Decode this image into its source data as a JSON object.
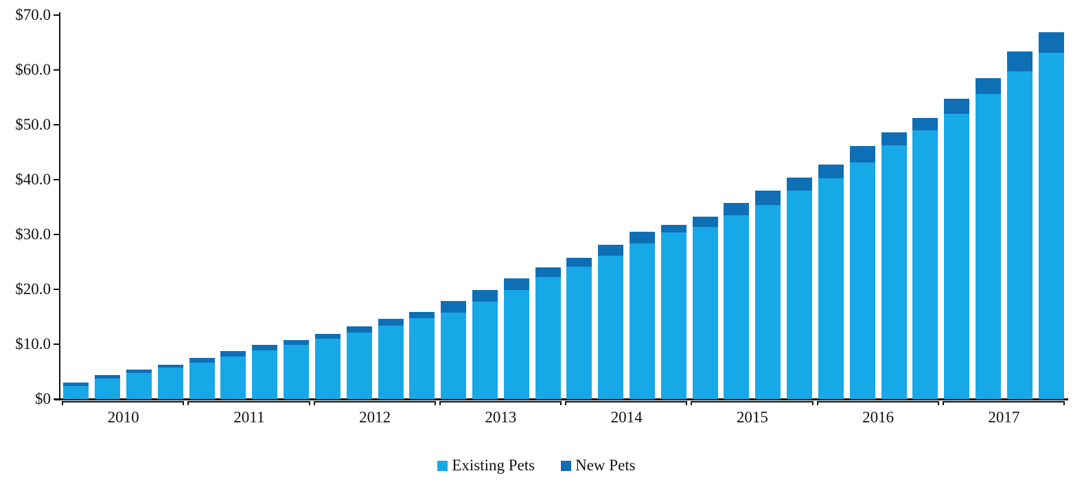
{
  "chart_data": {
    "type": "bar",
    "stacked": true,
    "orientation": "vertical",
    "title": "",
    "xlabel": "",
    "ylabel": "",
    "ylim": [
      0,
      70
    ],
    "grid": false,
    "legend_position": "bottom-center",
    "y_ticks": [
      {
        "label": "$70.0",
        "value": 70
      },
      {
        "label": "$60.0",
        "value": 60
      },
      {
        "label": "$50.0",
        "value": 50
      },
      {
        "label": "$40.0",
        "value": 40
      },
      {
        "label": "$30.0",
        "value": 30
      },
      {
        "label": "$20.0",
        "value": 20
      },
      {
        "label": "$10.0",
        "value": 10
      },
      {
        "label": "$0",
        "value": 0
      }
    ],
    "years": [
      "2010",
      "2011",
      "2012",
      "2013",
      "2014",
      "2015",
      "2016",
      "2017"
    ],
    "bars_per_year": 4,
    "categories": [
      "2010 Q1",
      "2010 Q2",
      "2010 Q3",
      "2010 Q4",
      "2011 Q1",
      "2011 Q2",
      "2011 Q3",
      "2011 Q4",
      "2012 Q1",
      "2012 Q2",
      "2012 Q3",
      "2012 Q4",
      "2013 Q1",
      "2013 Q2",
      "2013 Q3",
      "2013 Q4",
      "2014 Q1",
      "2014 Q2",
      "2014 Q3",
      "2014 Q4",
      "2015 Q1",
      "2015 Q2",
      "2015 Q3",
      "2015 Q4",
      "2016 Q1",
      "2016 Q2",
      "2016 Q3",
      "2016 Q4",
      "2017 Q1",
      "2017 Q2",
      "2017 Q3",
      "2017 Q4"
    ],
    "series": [
      {
        "name": "Existing Pets",
        "color": "#17a8e8",
        "values": [
          2.4,
          3.8,
          4.8,
          5.7,
          6.6,
          7.8,
          8.9,
          9.9,
          11.0,
          12.1,
          13.4,
          14.8,
          15.7,
          17.7,
          19.9,
          22.3,
          24.1,
          26.1,
          28.4,
          30.4,
          31.4,
          33.5,
          35.4,
          38.0,
          40.3,
          43.1,
          46.2,
          49.0,
          52.0,
          55.6,
          59.7,
          63.1
        ]
      },
      {
        "name": "New Pets",
        "color": "#0e6fb5",
        "values": [
          0.6,
          0.6,
          0.6,
          0.6,
          0.9,
          1.0,
          1.0,
          0.8,
          0.9,
          1.1,
          1.2,
          1.1,
          2.2,
          2.2,
          2.1,
          1.7,
          1.6,
          2.0,
          2.1,
          1.4,
          1.9,
          2.3,
          2.6,
          2.4,
          2.5,
          3.0,
          2.4,
          2.3,
          2.8,
          2.9,
          3.7,
          3.8
        ]
      }
    ]
  },
  "legend": {
    "items": [
      {
        "label": "Existing Pets",
        "color": "#17a8e8"
      },
      {
        "label": "New Pets",
        "color": "#0e6fb5"
      }
    ]
  },
  "colors": {
    "axis": "#111111",
    "background": "#ffffff"
  }
}
